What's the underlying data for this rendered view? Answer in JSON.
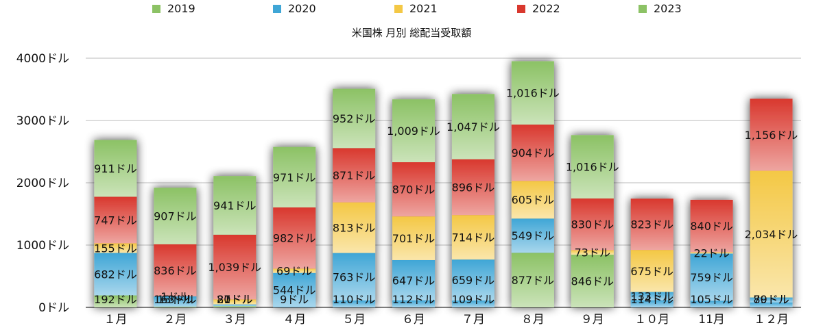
{
  "chart_data": {
    "type": "bar",
    "stacked": true,
    "title": "米国株 月別 総配当受取額",
    "categories": [
      "１月",
      "２月",
      "３月",
      "４月",
      "５月",
      "６月",
      "７月",
      "８月",
      "９月",
      "１０月",
      "11月",
      "１２月"
    ],
    "ylim": [
      0,
      4000
    ],
    "yticks": [
      "0ドル",
      "1000ドル",
      "2000ドル",
      "3000ドル",
      "4000ドル"
    ],
    "grid": true,
    "legend_position": "top",
    "series": [
      {
        "name": "2019",
        "color": "#8cc265",
        "values": [
          192,
          13,
          21,
          0,
          0,
          0,
          0,
          0,
          0,
          0,
          0,
          0
        ],
        "labels": [
          "192ドル",
          "13ドル",
          "21ドル",
          "",
          "",
          "",
          "",
          "",
          "",
          "",
          "",
          ""
        ]
      },
      {
        "name": "2020",
        "color": "#3fa6d6",
        "values": [
          682,
          163,
          27,
          9,
          110,
          112,
          109,
          0,
          0,
          114,
          105,
          79
        ],
        "labels": [
          "682ドル",
          "163ドル",
          "27ドル",
          "9ドル",
          "110ドル",
          "112ドル",
          "109ドル",
          "",
          "",
          "114ドル",
          "105ドル",
          "79ドル"
        ]
      },
      {
        "name": "2021",
        "color": "#f4c845",
        "values": [
          155,
          1,
          80,
          69,
          813,
          701,
          714,
          605,
          73,
          675,
          22,
          2034
        ],
        "labels": [
          "155ドル",
          "1ドル",
          "80ドル",
          "69ドル",
          "813ドル",
          "701ドル",
          "714ドル",
          "605ドル",
          "73ドル",
          "675ドル",
          "22ドル",
          "2,034ドル"
        ]
      },
      {
        "name": "2022",
        "color": "#d9382e",
        "values": [
          747,
          836,
          1039,
          982,
          871,
          870,
          896,
          904,
          830,
          823,
          840,
          1156
        ],
        "labels": [
          "747ドル",
          "836ドル",
          "1,039ドル",
          "982ドル",
          "871ドル",
          "870ドル",
          "896ドル",
          "904ドル",
          "830ドル",
          "823ドル",
          "840ドル",
          "1,156ドル"
        ]
      },
      {
        "name": "2023",
        "color": "#8cc265",
        "values": [
          911,
          907,
          941,
          971,
          952,
          1009,
          1047,
          1016,
          1016,
          0,
          0,
          0
        ],
        "labels": [
          "911ドル",
          "907ドル",
          "941ドル",
          "971ドル",
          "952ドル",
          "1,009ドル",
          "1,047ドル",
          "1,016ドル",
          "1,016ドル",
          "",
          "",
          ""
        ]
      }
    ],
    "extra_series": {
      "name": "2020",
      "values": [
        0,
        0,
        0,
        544,
        763,
        647,
        659,
        549,
        0,
        133,
        759,
        80
      ],
      "labels": [
        "",
        "",
        "",
        "544ドル",
        "763ドル",
        "647ドル",
        "659ドル",
        "549ドル",
        "",
        "133ドル",
        "759ドル",
        "80ドル"
      ]
    },
    "base_series": {
      "name": "2019",
      "values": [
        0,
        0,
        0,
        0,
        0,
        0,
        0,
        877,
        846,
        0,
        0,
        0
      ],
      "labels": [
        "",
        "",
        "",
        "",
        "",
        "",
        "",
        "877ドル",
        "846ドル",
        "",
        "",
        ""
      ]
    }
  }
}
